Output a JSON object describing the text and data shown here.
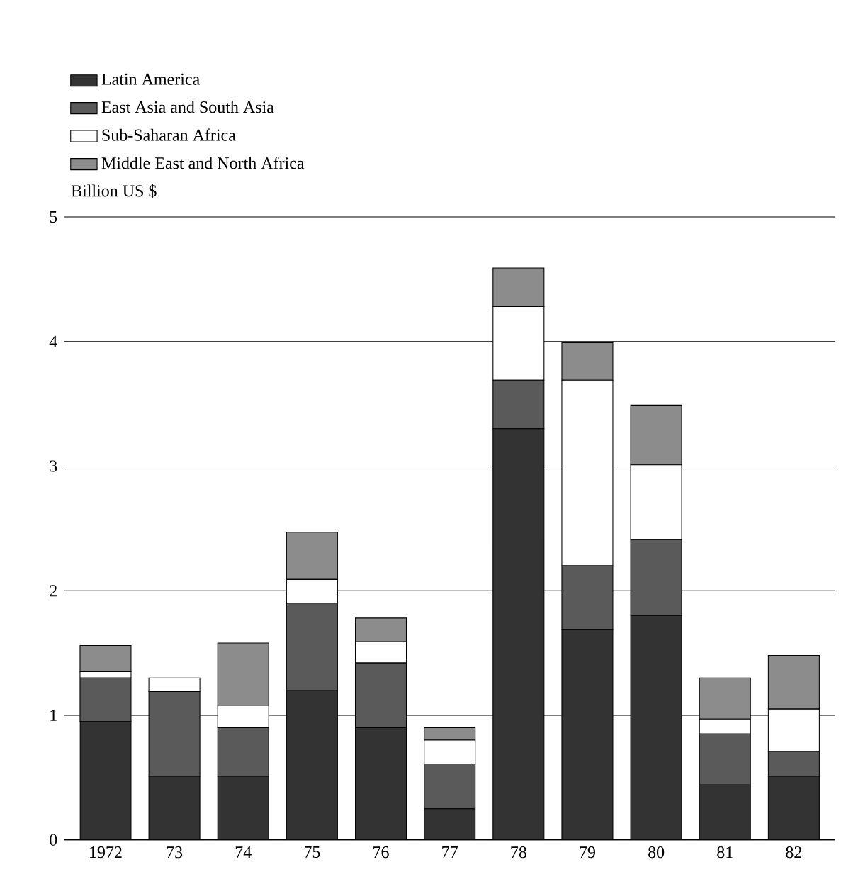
{
  "chart_data": {
    "type": "bar",
    "stacked": true,
    "ylabel": "Billion US $",
    "categories": [
      "1972",
      "73",
      "74",
      "75",
      "76",
      "77",
      "78",
      "79",
      "80",
      "81",
      "82"
    ],
    "series": [
      {
        "name": "Latin America",
        "color": "#333333",
        "values": [
          0.95,
          0.51,
          0.51,
          1.2,
          0.9,
          0.25,
          3.3,
          1.69,
          1.8,
          0.44,
          0.51
        ]
      },
      {
        "name": "East Asia and South Asia",
        "color": "#5a5a5a",
        "values": [
          0.35,
          0.68,
          0.39,
          0.7,
          0.52,
          0.36,
          0.39,
          0.51,
          0.61,
          0.41,
          0.2
        ]
      },
      {
        "name": "Sub-Saharan Africa",
        "color": "#ffffff",
        "values": [
          0.05,
          0.11,
          0.18,
          0.19,
          0.17,
          0.19,
          0.59,
          1.49,
          0.6,
          0.12,
          0.34
        ]
      },
      {
        "name": "Middle East and North Africa",
        "color": "#8c8c8c",
        "values": [
          0.21,
          0,
          0.5,
          0.38,
          0.19,
          0.1,
          0.31,
          0.3,
          0.48,
          0.33,
          0.43
        ]
      }
    ],
    "ylim": [
      0,
      5
    ],
    "yticks": [
      0,
      1,
      2,
      3,
      4,
      5
    ],
    "grid": "y",
    "legend": "top left"
  }
}
